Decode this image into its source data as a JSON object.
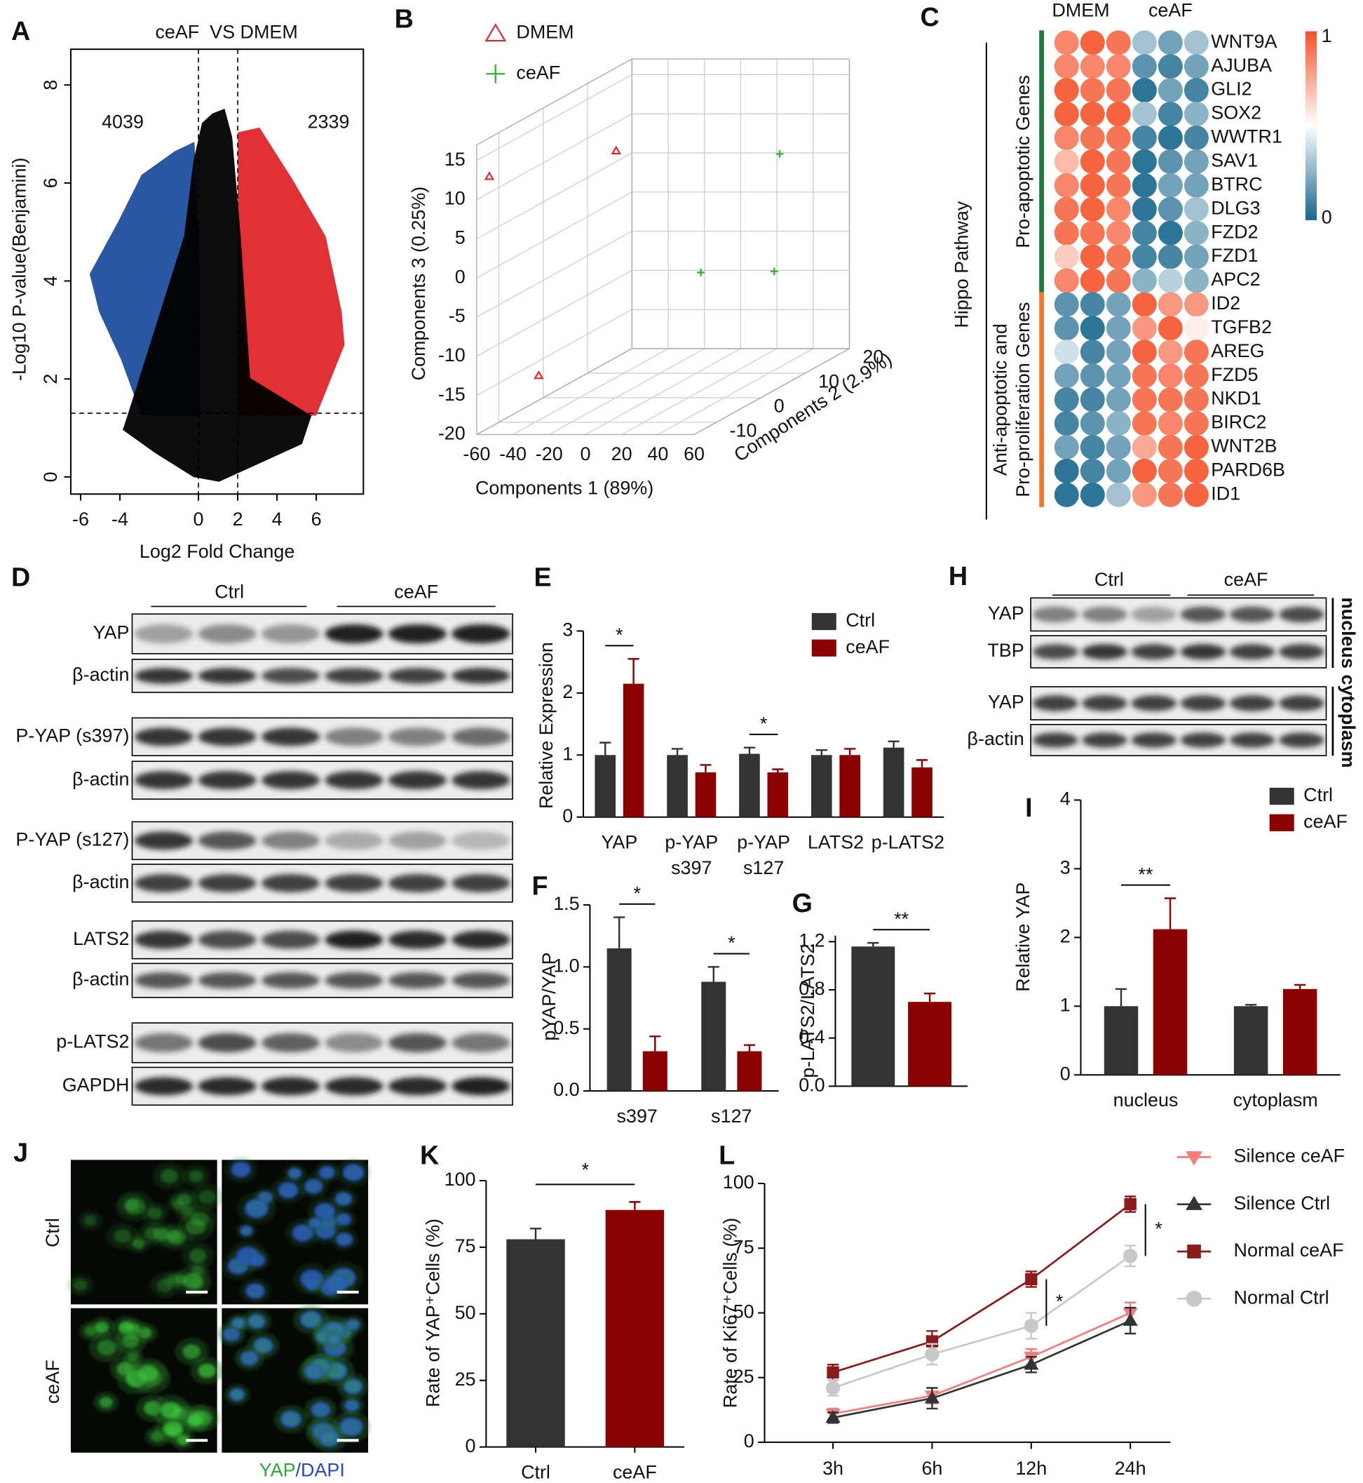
{
  "chart_data": [
    {
      "panel": "A",
      "type": "volcano",
      "title": "ceAF  VS DMEM",
      "xlabel": "Log2 Fold Change",
      "ylabel": "-Log10 P-value(Benjamini)",
      "xlim": [
        -6.5,
        8.4
      ],
      "ylim": [
        -0.35,
        8.73
      ],
      "xticks": [
        -6,
        -4,
        0,
        2,
        4,
        6
      ],
      "yticks": [
        0,
        2,
        4,
        6,
        8
      ],
      "x_thresholds": [
        0,
        2
      ],
      "y_threshold": 1.3,
      "colors": {
        "down": "#1f4e9c",
        "up": "#e0262b",
        "ns": "#000000"
      },
      "annotations": [
        {
          "text": "4039",
          "color": "#1f4e9c"
        },
        {
          "text": "2339",
          "color": "#e0262b"
        }
      ]
    },
    {
      "panel": "B",
      "type": "scatter3d",
      "xlabel": "Components 1 (89%)",
      "ylabel": "Components 2 (2.9%)",
      "zlabel": "Components 3 (0.25%)",
      "xlim": [
        -60,
        60
      ],
      "ylim": [
        -15,
        20
      ],
      "zlim": [
        -20,
        17
      ],
      "xticks": [
        -60,
        -40,
        -20,
        0,
        20,
        40,
        60
      ],
      "yticks": [
        -10,
        0,
        10,
        20
      ],
      "zticks": [
        -20,
        -15,
        -10,
        -5,
        0,
        5,
        10,
        15
      ],
      "series": [
        {
          "name": "DMEM",
          "color": "#e0262b",
          "marker": "triangle",
          "x": [
            -53,
            -32,
            -38
          ],
          "y": [
            -15,
            5,
            -10
          ],
          "z": [
            13,
            10,
            -14
          ]
        },
        {
          "name": "ceAF",
          "color": "#3cb33c",
          "marker": "plus",
          "x": [
            46,
            27,
            43
          ],
          "y": [
            10,
            0,
            10
          ],
          "z": [
            8,
            -4,
            -7
          ]
        }
      ]
    },
    {
      "panel": "C",
      "type": "heatmap",
      "title": "Hippo Pathway",
      "columns": [
        "DMEM",
        "ceAF"
      ],
      "zlim": [
        0,
        1
      ],
      "colorbar_ticks": [
        1,
        0
      ],
      "colorscale": [
        "#16668c",
        "#ffffff",
        "#f4522a"
      ],
      "groups": [
        {
          "label": [
            "Pro-apoptotic Genes"
          ],
          "color": "#1e7a3c",
          "rows": [
            "WNT9A",
            "AJUBA",
            "GLI2",
            "SOX2",
            "WWTR1",
            "SAV1",
            "BTRC",
            "DLG3",
            "FZD2",
            "FZD1",
            "APC2"
          ],
          "values": [
            [
              0.85,
              0.95,
              0.9,
              0.3,
              0.2,
              0.3
            ],
            [
              0.85,
              0.85,
              0.85,
              0.15,
              0.1,
              0.2
            ],
            [
              0.95,
              0.9,
              0.9,
              0.05,
              0.2,
              0.1
            ],
            [
              0.95,
              0.95,
              0.95,
              0.3,
              0.1,
              0.25
            ],
            [
              0.85,
              0.9,
              0.9,
              0.1,
              0.05,
              0.1
            ],
            [
              0.7,
              0.95,
              0.9,
              0.05,
              0.15,
              0.2
            ],
            [
              0.85,
              0.95,
              0.9,
              0.05,
              0.2,
              0.2
            ],
            [
              0.9,
              0.95,
              0.85,
              0.05,
              0.15,
              0.3
            ],
            [
              0.9,
              0.9,
              0.85,
              0.1,
              0.05,
              0.25
            ],
            [
              0.65,
              0.95,
              0.9,
              0.1,
              0.1,
              0.2
            ],
            [
              0.85,
              0.95,
              0.9,
              0.25,
              0.35,
              0.25
            ]
          ]
        },
        {
          "label": [
            "Anti-apoptotic and",
            "Pro-proliferation Genes"
          ],
          "color": "#ee7a32",
          "rows": [
            "ID2",
            "TGFB2",
            "AREG",
            "FZD5",
            "NKD1",
            "BIRC2",
            "WNT2B",
            "PARD6B",
            "ID1"
          ],
          "values": [
            [
              0.15,
              0.1,
              0.2,
              0.95,
              0.8,
              0.8
            ],
            [
              0.15,
              0.05,
              0.2,
              0.8,
              0.95,
              0.55
            ],
            [
              0.4,
              0.1,
              0.2,
              0.95,
              0.8,
              0.9
            ],
            [
              0.2,
              0.15,
              0.2,
              0.9,
              0.85,
              0.9
            ],
            [
              0.1,
              0.1,
              0.2,
              0.9,
              0.9,
              0.9
            ],
            [
              0.1,
              0.15,
              0.25,
              0.9,
              0.85,
              0.9
            ],
            [
              0.2,
              0.1,
              0.2,
              0.75,
              0.9,
              0.95
            ],
            [
              0.05,
              0.1,
              0.2,
              0.95,
              0.9,
              0.95
            ],
            [
              0.05,
              0.05,
              0.3,
              0.8,
              0.9,
              0.95
            ]
          ]
        }
      ]
    },
    {
      "panel": "E",
      "type": "bar",
      "ylabel": "Relative Expression",
      "ylim": [
        0,
        3
      ],
      "yticks": [
        0,
        1,
        2,
        3
      ],
      "categories": [
        [
          "YAP"
        ],
        [
          "p-YAP",
          "s397"
        ],
        [
          "p-YAP",
          "s127"
        ],
        [
          "LATS2"
        ],
        [
          "p-LATS2"
        ]
      ],
      "series": [
        {
          "name": "Ctrl",
          "color": "#333333",
          "values": [
            1,
            1,
            1.02,
            1,
            1.12
          ],
          "errors": [
            0.2,
            0.1,
            0.1,
            0.08,
            0.1
          ]
        },
        {
          "name": "ceAF",
          "color": "#8b0000",
          "values": [
            2.15,
            0.72,
            0.72,
            1,
            0.8
          ],
          "errors": [
            0.4,
            0.12,
            0.05,
            0.1,
            0.12
          ]
        }
      ],
      "significance": [
        "*",
        null,
        "*",
        null,
        null
      ]
    },
    {
      "panel": "F",
      "type": "bar",
      "ylabel": "pYAP/YAP",
      "ylim": [
        0,
        1.5
      ],
      "yticks": [
        {
          "value": 0,
          "label": "0.0"
        },
        {
          "value": 0.5,
          "label": "0.5"
        },
        {
          "value": 1,
          "label": "1.0"
        },
        {
          "value": 1.5,
          "label": "1.5"
        }
      ],
      "categories": [
        [
          "s397"
        ],
        [
          "s127"
        ]
      ],
      "series": [
        {
          "color": "#333333",
          "values": [
            1.15,
            0.88
          ],
          "errors": [
            0.25,
            0.12
          ]
        },
        {
          "color": "#8b0000",
          "values": [
            0.32,
            0.32
          ],
          "errors": [
            0.12,
            0.05
          ]
        }
      ],
      "significance": [
        "*",
        "*"
      ]
    },
    {
      "panel": "G",
      "type": "bar",
      "ylabel": "p-LATS2/LATS2",
      "ylim": [
        0,
        1.25
      ],
      "yticks": [
        {
          "value": 0,
          "label": "0.0"
        },
        0.4,
        0.8,
        1.2
      ],
      "series": [
        {
          "color": "#333333",
          "values": [
            1.16
          ],
          "errors": [
            0.03
          ]
        },
        {
          "color": "#8b0000",
          "values": [
            0.7
          ],
          "errors": [
            0.07
          ]
        }
      ],
      "significance": [
        "**"
      ]
    },
    {
      "panel": "I",
      "type": "bar",
      "ylabel": "Relative YAP",
      "ylim": [
        0,
        4
      ],
      "yticks": [
        0,
        1,
        2,
        3,
        4
      ],
      "categories": [
        [
          "nucleus"
        ],
        [
          "cytoplasm"
        ]
      ],
      "series": [
        {
          "name": "Ctrl",
          "color": "#333333",
          "values": [
            1,
            1
          ],
          "errors": [
            0.25,
            0.02
          ]
        },
        {
          "name": "ceAF",
          "color": "#8b0000",
          "values": [
            2.12,
            1.25
          ],
          "errors": [
            0.45,
            0.06
          ]
        }
      ],
      "significance": [
        "**",
        null
      ]
    },
    {
      "panel": "K",
      "type": "bar",
      "ylabel": "Rate of YAP⁺Cells (%)",
      "ylim": [
        0,
        100
      ],
      "yticks": [
        0,
        25,
        50,
        75,
        100
      ],
      "categories": [
        [
          "Ctrl"
        ],
        [
          "ceAF"
        ]
      ],
      "values": [
        78,
        89
      ],
      "errors": [
        4,
        3
      ],
      "colors": [
        "#333333",
        "#8b0000"
      ],
      "significance": [
        "*"
      ]
    },
    {
      "panel": "L",
      "type": "line",
      "ylabel": "Rate of Ki67⁺Cells (%)",
      "ylim": [
        0,
        100
      ],
      "yticks": [
        0,
        25,
        50,
        75,
        100
      ],
      "x": [
        "3h",
        "6h",
        "12h",
        "24h"
      ],
      "series": [
        {
          "name": "Silence ceAF",
          "color": "#f47c7c",
          "marker": "triangle-down",
          "values": [
            11,
            18,
            33,
            50
          ],
          "errors": [
            2,
            3,
            3,
            4
          ]
        },
        {
          "name": "Silence Ctrl",
          "color": "#333333",
          "marker": "triangle-up",
          "values": [
            9.5,
            17,
            30,
            47
          ],
          "errors": [
            2,
            4,
            3,
            5
          ]
        },
        {
          "name": "Normal ceAF",
          "color": "#8b1a1a",
          "marker": "square",
          "values": [
            27,
            39,
            63,
            92
          ],
          "errors": [
            3,
            4,
            3,
            3
          ]
        },
        {
          "name": "Normal Ctrl",
          "color": "#c8c8c8",
          "marker": "circle",
          "values": [
            21,
            34,
            45,
            72
          ],
          "errors": [
            3,
            4,
            5,
            4
          ]
        }
      ],
      "significance": [
        null,
        null,
        "*",
        "*"
      ]
    }
  ],
  "blots": [
    {
      "panel": "D",
      "groups": [
        "Ctrl",
        "ceAF"
      ],
      "rows": [
        "YAP",
        "β-actin",
        "P-YAP (s397)",
        "β-actin",
        "P-YAP (s127)",
        "β-actin",
        "LATS2",
        "β-actin",
        "p-LATS2",
        "GAPDH"
      ]
    },
    {
      "panel": "H",
      "groups": [
        "Ctrl",
        "ceAF"
      ],
      "rows": [
        "YAP",
        "TBP",
        "YAP",
        "β-actin"
      ],
      "fractions": [
        "nucleus",
        "cytoplasm"
      ]
    }
  ],
  "images": {
    "panel": "J",
    "rows": [
      "Ctrl",
      "ceAF"
    ],
    "stain": [
      "YAP",
      "/DAPI"
    ]
  }
}
